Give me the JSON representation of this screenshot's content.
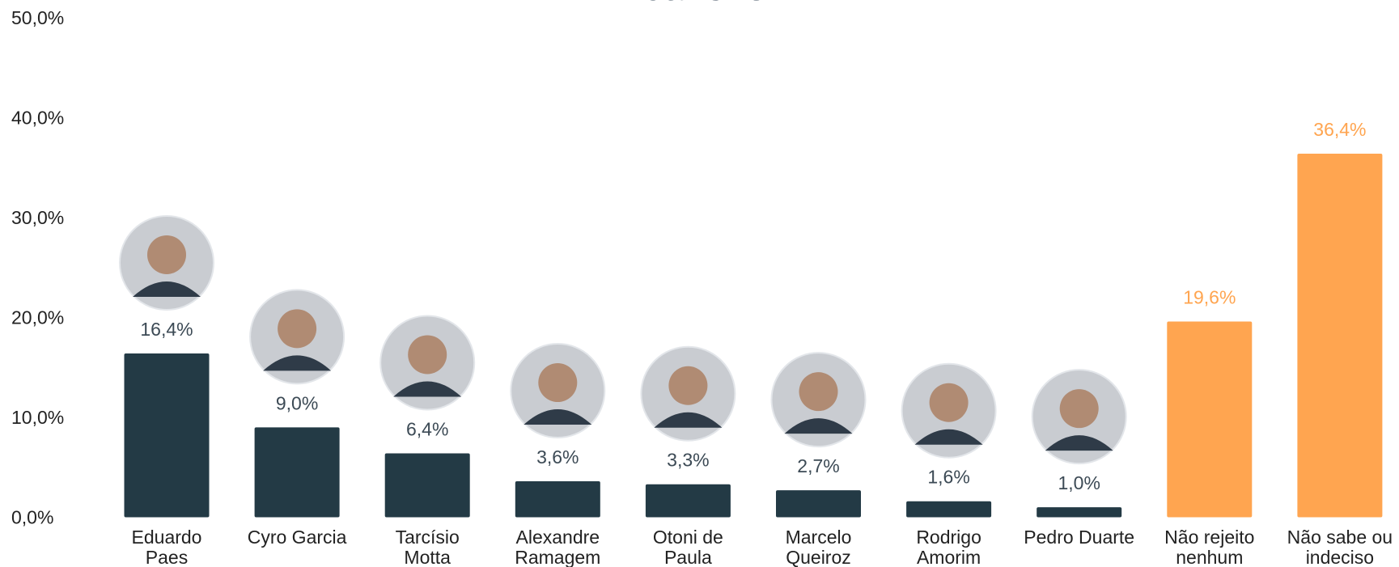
{
  "chart_data": {
    "type": "bar",
    "title": "Janeiro?",
    "categories": [
      "Eduardo\nPaes",
      "Cyro Garcia",
      "Tarcísio\nMotta",
      "Alexandre\nRamagem",
      "Otoni de\nPaula",
      "Marcelo\nQueiroz",
      "Rodrigo\nAmorim",
      "Pedro Duarte",
      "Não rejeito\nnenhum",
      "Não sabe ou\nindeciso"
    ],
    "values": [
      16.4,
      9.0,
      6.4,
      3.6,
      3.3,
      2.7,
      1.6,
      1.0,
      19.6,
      36.4
    ],
    "value_labels": [
      "16,4%",
      "9,0%",
      "6,4%",
      "3,6%",
      "3,3%",
      "2,7%",
      "1,6%",
      "1,0%",
      "19,6%",
      "36,4%"
    ],
    "colors": [
      "#233a45",
      "#233a45",
      "#233a45",
      "#233a45",
      "#233a45",
      "#233a45",
      "#233a45",
      "#233a45",
      "#ffa550",
      "#ffa550"
    ],
    "ylim": [
      0,
      50
    ],
    "yticks": [
      {
        "value": 0,
        "label": "0,0%"
      },
      {
        "value": 10,
        "label": "10,0%"
      },
      {
        "value": 20,
        "label": "20,0%"
      },
      {
        "value": 30,
        "label": "30,0%"
      },
      {
        "value": 40,
        "label": "40,0%"
      },
      {
        "value": 50,
        "label": "50,0%"
      }
    ]
  }
}
